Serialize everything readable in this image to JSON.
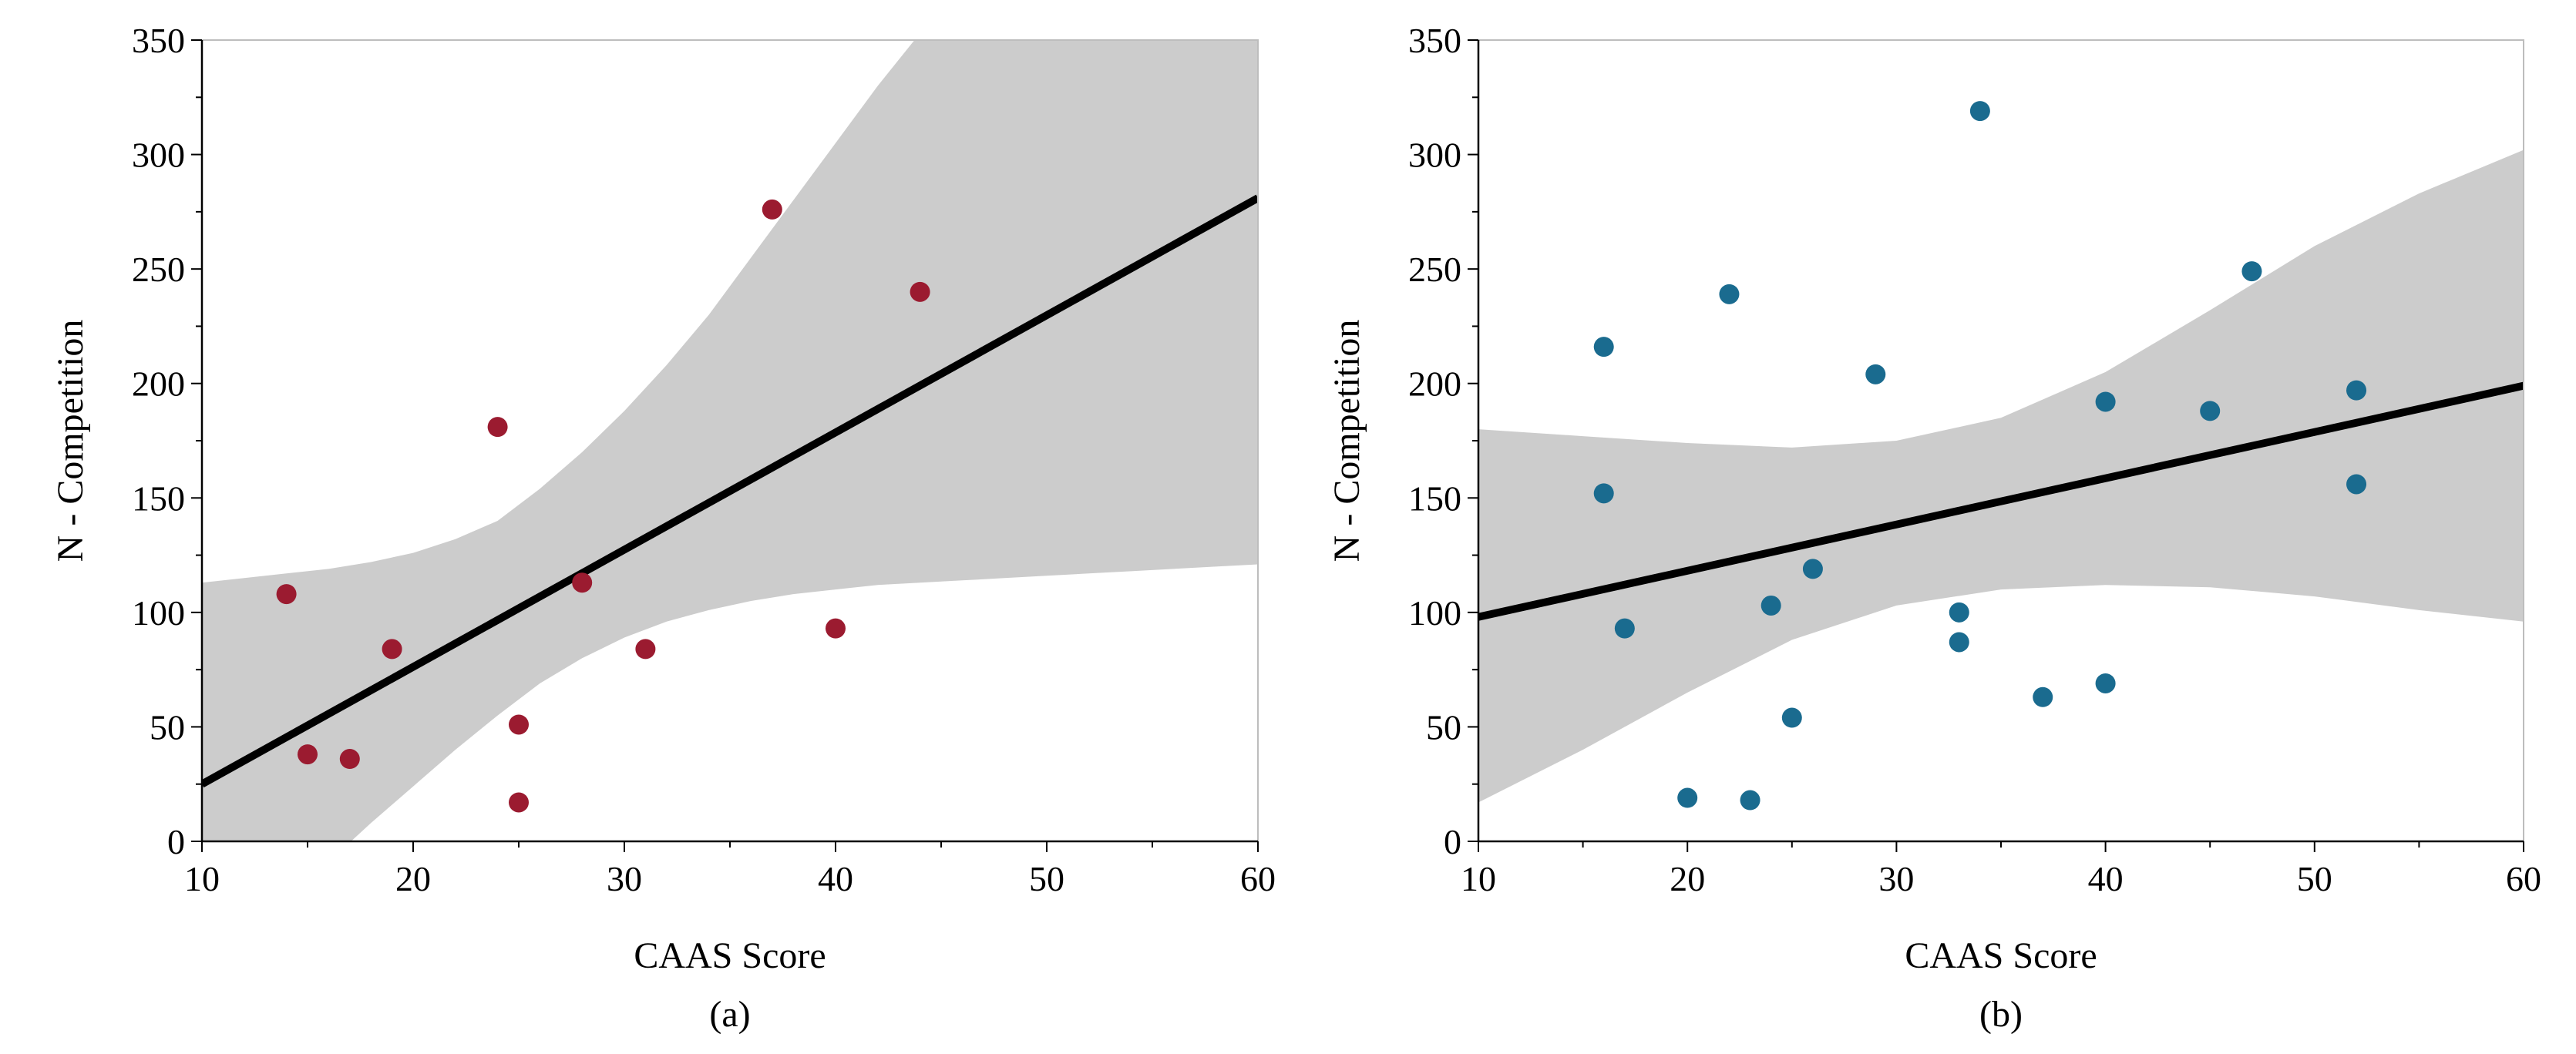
{
  "chart_data": [
    {
      "type": "scatter",
      "panel_label": "(a)",
      "xlabel": "CAAS Score",
      "ylabel": "N - Competition",
      "xlim": [
        10,
        60
      ],
      "ylim": [
        0,
        350
      ],
      "xticks": [
        10,
        20,
        30,
        40,
        50,
        60
      ],
      "yticks": [
        0,
        50,
        100,
        150,
        200,
        250,
        300,
        350
      ],
      "point_color": "#9b1b30",
      "band_color": "#cccccc",
      "line_color": "#000000",
      "points": [
        {
          "x": 14,
          "y": 108
        },
        {
          "x": 15,
          "y": 38
        },
        {
          "x": 17,
          "y": 36
        },
        {
          "x": 19,
          "y": 84
        },
        {
          "x": 24,
          "y": 181
        },
        {
          "x": 25,
          "y": 51
        },
        {
          "x": 25,
          "y": 17
        },
        {
          "x": 28,
          "y": 113
        },
        {
          "x": 31,
          "y": 84
        },
        {
          "x": 37,
          "y": 276
        },
        {
          "x": 40,
          "y": 93
        },
        {
          "x": 44,
          "y": 240
        }
      ],
      "fit_line": {
        "x": [
          10,
          60
        ],
        "y": [
          25,
          281
        ]
      },
      "confidence_band": {
        "x": [
          10,
          12,
          14,
          16,
          18,
          20,
          22,
          24,
          26,
          28,
          30,
          32,
          34,
          36,
          38,
          40,
          42,
          44,
          46,
          48,
          50,
          52,
          54,
          56,
          58,
          60
        ],
        "upper": [
          113,
          115,
          117,
          119,
          122,
          126,
          132,
          140,
          154,
          170,
          188,
          208,
          230,
          255,
          280,
          305,
          330,
          353,
          350,
          350,
          350,
          350,
          350,
          350,
          350,
          350
        ],
        "lower": [
          -63,
          -45,
          -27,
          -9,
          8,
          24,
          40,
          55,
          69,
          80,
          89,
          96,
          101,
          105,
          108,
          110,
          112,
          113,
          114,
          115,
          116,
          117,
          118,
          119,
          120,
          121
        ]
      }
    },
    {
      "type": "scatter",
      "panel_label": "(b)",
      "xlabel": "CAAS Score",
      "ylabel": "N - Competition",
      "xlim": [
        10,
        60
      ],
      "ylim": [
        0,
        350
      ],
      "xticks": [
        10,
        20,
        30,
        40,
        50,
        60
      ],
      "yticks": [
        0,
        50,
        100,
        150,
        200,
        250,
        300,
        350
      ],
      "point_color": "#1a6b8f",
      "band_color": "#cccccc",
      "line_color": "#000000",
      "points": [
        {
          "x": 16,
          "y": 216
        },
        {
          "x": 16,
          "y": 152
        },
        {
          "x": 17,
          "y": 93
        },
        {
          "x": 20,
          "y": 19
        },
        {
          "x": 22,
          "y": 239
        },
        {
          "x": 23,
          "y": 18
        },
        {
          "x": 24,
          "y": 103
        },
        {
          "x": 25,
          "y": 54
        },
        {
          "x": 26,
          "y": 119
        },
        {
          "x": 29,
          "y": 204
        },
        {
          "x": 33,
          "y": 100
        },
        {
          "x": 33,
          "y": 87
        },
        {
          "x": 34,
          "y": 319
        },
        {
          "x": 37,
          "y": 63
        },
        {
          "x": 40,
          "y": 192
        },
        {
          "x": 40,
          "y": 69
        },
        {
          "x": 45,
          "y": 188
        },
        {
          "x": 47,
          "y": 249
        },
        {
          "x": 52,
          "y": 197
        },
        {
          "x": 52,
          "y": 156
        }
      ],
      "fit_line": {
        "x": [
          10,
          60
        ],
        "y": [
          98,
          199
        ]
      },
      "confidence_band": {
        "x": [
          10,
          15,
          20,
          25,
          30,
          35,
          40,
          45,
          50,
          55,
          60
        ],
        "upper": [
          180,
          177,
          174,
          172,
          175,
          185,
          205,
          232,
          260,
          283,
          302
        ],
        "lower": [
          17,
          40,
          65,
          88,
          103,
          110,
          112,
          111,
          107,
          101,
          96
        ]
      }
    }
  ]
}
